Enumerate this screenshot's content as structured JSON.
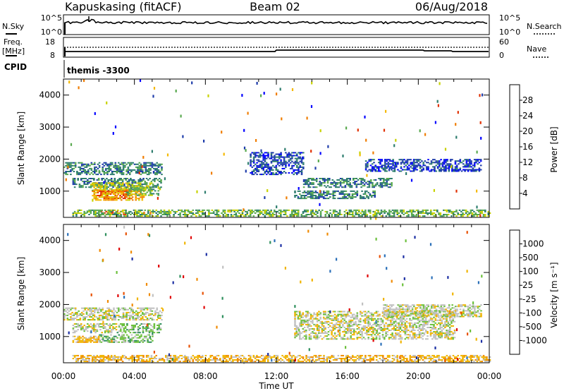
{
  "header": {
    "station": "Kapuskasing (fitACF)",
    "beam": "Beam 02",
    "date": "06/Aug/2018"
  },
  "noise_panel": {
    "left_label": "N.Sky",
    "right_label": "N.Search",
    "left_ticks": [
      "10^5",
      "10^0"
    ],
    "right_ticks": [
      "10^5",
      "10^0"
    ]
  },
  "freq_panel": {
    "left_label_1": "Freq.",
    "left_label_2": "[MHz]",
    "right_label": "Nave",
    "left_ticks": [
      "18",
      "8"
    ],
    "right_ticks": [
      "60",
      "0"
    ]
  },
  "cpid": {
    "label": "CPID",
    "value": "themis -3300"
  },
  "axes": {
    "y_label": "Slant Range [km]",
    "y_ticks": [
      "4000",
      "3000",
      "2000",
      "1000"
    ],
    "y_values": [
      4000,
      3000,
      2000,
      1000
    ],
    "y_range": [
      180,
      4500
    ],
    "x_ticks": [
      "00:00",
      "04:00",
      "08:00",
      "12:00",
      "16:00",
      "20:00",
      "00:00"
    ],
    "x_hours": [
      0,
      4,
      8,
      12,
      16,
      20,
      24
    ],
    "x_label": "Time UT"
  },
  "power_colorbar": {
    "label": "Power [dB]",
    "ticks": [
      "28",
      "24",
      "20",
      "16",
      "12",
      "8",
      "4"
    ],
    "colors": [
      "#0000ff",
      "#1e3caa",
      "#2e7d6e",
      "#59a94f",
      "#c8d200",
      "#f5b800",
      "#f07d00",
      "#e03000"
    ]
  },
  "velocity_colorbar": {
    "label": "Velocity [m s⁻¹]",
    "ticks": [
      "1000",
      "500",
      "100",
      "25",
      "-25",
      "-100",
      "-500",
      "-1000"
    ],
    "colors": [
      "#1c2fa3",
      "#2a6fb8",
      "#2e8f5c",
      "#6cc03c",
      "#c0c0c0",
      "#f0b400",
      "#f08a00",
      "#e85000",
      "#e00000"
    ]
  },
  "chart_data": {
    "type": "heatmap",
    "x_unit": "hours UT",
    "y_unit": "km",
    "power_regions": [
      {
        "t": [
          0.0,
          5.5
        ],
        "r": [
          1500,
          1900
        ],
        "level": 2
      },
      {
        "t": [
          0.5,
          5.5
        ],
        "r": [
          1100,
          1400
        ],
        "level": 2
      },
      {
        "t": [
          1.5,
          5.0
        ],
        "r": [
          1000,
          1250
        ],
        "level": 4
      },
      {
        "t": [
          1.8,
          3.8
        ],
        "r": [
          750,
          1000
        ],
        "level": 7
      },
      {
        "t": [
          1.6,
          4.5
        ],
        "r": [
          700,
          1050
        ],
        "level": 5
      },
      {
        "t": [
          2.0,
          3.5
        ],
        "r": [
          250,
          380
        ],
        "level": 7
      },
      {
        "t": [
          3.5,
          5.4
        ],
        "r": [
          850,
          1100
        ],
        "level": 3
      },
      {
        "t": [
          0.5,
          24.0
        ],
        "r": [
          200,
          420
        ],
        "level": 3
      },
      {
        "t": [
          13.5,
          18.5
        ],
        "r": [
          1100,
          1400
        ],
        "level": 2
      },
      {
        "t": [
          13.0,
          17.5
        ],
        "r": [
          750,
          1000
        ],
        "level": 2
      },
      {
        "t": [
          17.0,
          23.5
        ],
        "r": [
          1600,
          2000
        ],
        "level": 1
      },
      {
        "t": [
          10.5,
          13.5
        ],
        "r": [
          1500,
          2200
        ],
        "level": 1
      }
    ],
    "velocity_regions": [
      {
        "t": [
          0.0,
          5.5
        ],
        "r": [
          1500,
          1900
        ],
        "level": 4
      },
      {
        "t": [
          0.5,
          3.0
        ],
        "r": [
          1100,
          1400
        ],
        "level": 4
      },
      {
        "t": [
          3.0,
          5.5
        ],
        "r": [
          1100,
          1400
        ],
        "level": 3
      },
      {
        "t": [
          2.0,
          5.0
        ],
        "r": [
          800,
          1050
        ],
        "level": 3
      },
      {
        "t": [
          0.5,
          2.0
        ],
        "r": [
          800,
          1000
        ],
        "level": 5
      },
      {
        "t": [
          1.5,
          3.5
        ],
        "r": [
          250,
          380
        ],
        "level": 5
      },
      {
        "t": [
          0.5,
          24.0
        ],
        "r": [
          200,
          420
        ],
        "level": 5
      },
      {
        "t": [
          13.0,
          22.0
        ],
        "r": [
          900,
          1800
        ],
        "level": 4
      },
      {
        "t": [
          18.0,
          23.5
        ],
        "r": [
          1600,
          2000
        ],
        "level": 4
      }
    ]
  }
}
